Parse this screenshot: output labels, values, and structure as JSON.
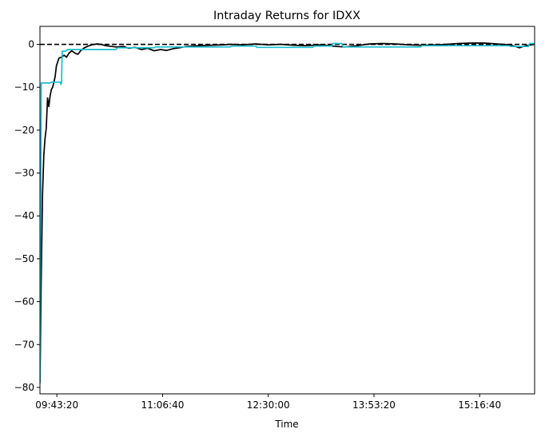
{
  "chart_data": {
    "type": "line",
    "title": "Intraday Returns for IDXX",
    "xlabel": "Time",
    "ylabel": "",
    "x_ticks": [
      "09:43:20",
      "11:06:40",
      "12:30:00",
      "13:53:20",
      "15:16:40"
    ],
    "y_ticks": [
      "0",
      "−10",
      "−20",
      "−30",
      "−40",
      "−50",
      "−60",
      "−70",
      "−80"
    ],
    "xlim": [
      "09:30:00",
      "16:00:00"
    ],
    "ylim": [
      -81.5,
      4.2
    ],
    "grid": false,
    "reference_line": {
      "y": 0,
      "style": "dashed",
      "color": "#000000"
    },
    "series": [
      {
        "color": "#000000",
        "points": [
          [
            "09:30:00",
            -79
          ],
          [
            "09:31:00",
            -55
          ],
          [
            "09:32:00",
            -35
          ],
          [
            "09:33:00",
            -26
          ],
          [
            "09:34:00",
            -22
          ],
          [
            "09:35:00",
            -19.5
          ],
          [
            "09:36:00",
            -12.5
          ],
          [
            "09:37:00",
            -14.5
          ],
          [
            "09:38:00",
            -12
          ],
          [
            "09:39:00",
            -10.5
          ],
          [
            "09:40:00",
            -10
          ],
          [
            "09:41:00",
            -8.8
          ],
          [
            "09:42:00",
            -7.5
          ],
          [
            "09:43:00",
            -5
          ],
          [
            "09:45:00",
            -3.2
          ],
          [
            "09:47:00",
            -3
          ],
          [
            "09:49:00",
            -2.5
          ],
          [
            "09:51:00",
            -3
          ],
          [
            "09:53:00",
            -2
          ],
          [
            "09:55:00",
            -1.5
          ],
          [
            "09:58:00",
            -2.1
          ],
          [
            "10:00:00",
            -2.3
          ],
          [
            "10:02:00",
            -1.5
          ],
          [
            "10:05:00",
            -0.8
          ],
          [
            "10:08:00",
            -0.4
          ],
          [
            "10:11:00",
            -0.1
          ],
          [
            "10:15:00",
            0.1
          ],
          [
            "10:18:00",
            0
          ],
          [
            "10:22:00",
            -0.3
          ],
          [
            "10:27:00",
            -0.5
          ],
          [
            "10:30:00",
            -0.6
          ],
          [
            "10:36:00",
            -0.5
          ],
          [
            "10:40:00",
            -0.9
          ],
          [
            "10:45:00",
            -0.7
          ],
          [
            "10:50:00",
            -1.2
          ],
          [
            "10:55:00",
            -0.9
          ],
          [
            "11:00:00",
            -1.5
          ],
          [
            "11:05:00",
            -1.2
          ],
          [
            "11:10:00",
            -1.4
          ],
          [
            "11:15:00",
            -1.0
          ],
          [
            "11:20:00",
            -0.8
          ],
          [
            "11:25:00",
            -0.5
          ],
          [
            "11:35:00",
            -0.3
          ],
          [
            "11:45:00",
            -0.2
          ],
          [
            "11:55:00",
            -0.1
          ],
          [
            "12:00:00",
            0
          ],
          [
            "12:10:00",
            -0.1
          ],
          [
            "12:20:00",
            0.1
          ],
          [
            "12:30:00",
            -0.1
          ],
          [
            "12:40:00",
            0
          ],
          [
            "12:50:00",
            -0.2
          ],
          [
            "13:00:00",
            -0.3
          ],
          [
            "13:10:00",
            -0.1
          ],
          [
            "13:15:00",
            -0.2
          ],
          [
            "13:20:00",
            -0.4
          ],
          [
            "13:30:00",
            -0.6
          ],
          [
            "13:40:00",
            -0.3
          ],
          [
            "13:50:00",
            0.1
          ],
          [
            "14:00:00",
            0.2
          ],
          [
            "14:10:00",
            0.1
          ],
          [
            "14:20:00",
            -0.1
          ],
          [
            "14:30:00",
            -0.2
          ],
          [
            "14:45:00",
            -0.1
          ],
          [
            "15:00:00",
            0.2
          ],
          [
            "15:10:00",
            0.3
          ],
          [
            "15:20:00",
            0.3
          ],
          [
            "15:30:00",
            0.1
          ],
          [
            "15:40:00",
            -0.1
          ],
          [
            "15:45:00",
            -0.5
          ],
          [
            "15:48:00",
            -0.8
          ],
          [
            "15:52:00",
            -0.4
          ],
          [
            "15:55:00",
            -0.2
          ],
          [
            "16:00:00",
            0
          ]
        ]
      },
      {
        "color": "#17becf",
        "points": [
          [
            "09:30:00",
            -79
          ],
          [
            "09:31:00",
            -9
          ],
          [
            "09:38:00",
            -9
          ],
          [
            "09:39:00",
            -8.8
          ],
          [
            "09:46:00",
            -8.8
          ],
          [
            "09:46:30",
            -9.3
          ],
          [
            "09:47:00",
            -9
          ],
          [
            "09:47:30",
            -1.6
          ],
          [
            "09:50:00",
            -1.6
          ],
          [
            "09:52:00",
            -1.2
          ],
          [
            "10:30:00",
            -1.2
          ],
          [
            "10:31:00",
            -0.8
          ],
          [
            "11:00:00",
            -0.8
          ],
          [
            "11:01:00",
            -0.6
          ],
          [
            "12:00:00",
            -0.6
          ],
          [
            "12:01:00",
            -0.4
          ],
          [
            "12:20:00",
            -0.4
          ],
          [
            "12:21:00",
            -0.7
          ],
          [
            "13:05:00",
            -0.7
          ],
          [
            "13:06:00",
            -0.4
          ],
          [
            "13:20:00",
            -0.4
          ],
          [
            "13:21:00",
            0.2
          ],
          [
            "13:28:00",
            0.2
          ],
          [
            "13:29:00",
            -0.6
          ],
          [
            "14:30:00",
            -0.6
          ],
          [
            "14:31:00",
            -0.3
          ],
          [
            "15:40:00",
            -0.3
          ],
          [
            "15:41:00",
            -0.5
          ],
          [
            "15:55:00",
            -0.5
          ],
          [
            "15:56:00",
            0.2
          ],
          [
            "16:00:00",
            0.2
          ]
        ]
      }
    ]
  }
}
